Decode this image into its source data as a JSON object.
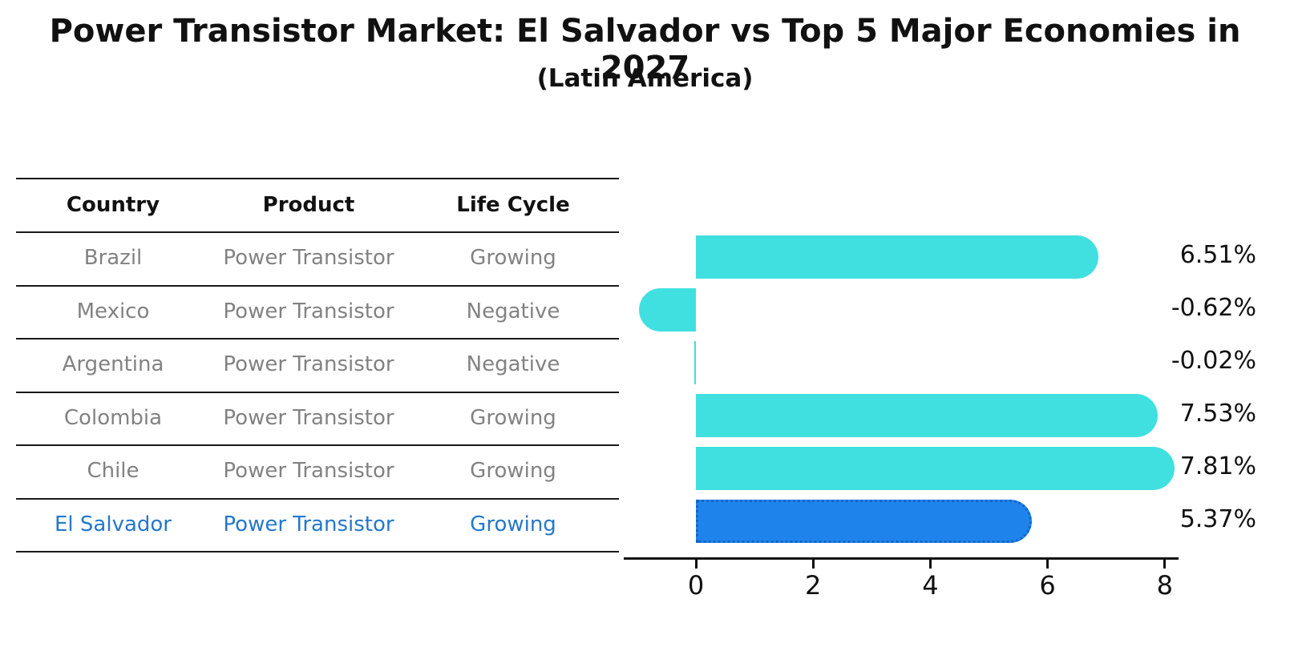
{
  "title": "Power Transistor Market: El Salvador vs Top 5 Major Economies in 2027",
  "subtitle": "(Latin America)",
  "table": {
    "headers": [
      "Country",
      "Product",
      "Life Cycle"
    ],
    "rows": [
      {
        "country": "Brazil",
        "product": "Power Transistor",
        "life_cycle": "Growing",
        "highlight": false
      },
      {
        "country": "Mexico",
        "product": "Power Transistor",
        "life_cycle": "Negative",
        "highlight": false
      },
      {
        "country": "Argentina",
        "product": "Power Transistor",
        "life_cycle": "Negative",
        "highlight": false
      },
      {
        "country": "Colombia",
        "product": "Power Transistor",
        "life_cycle": "Growing",
        "highlight": false
      },
      {
        "country": "Chile",
        "product": "Power Transistor",
        "life_cycle": "Growing",
        "highlight": false
      },
      {
        "country": "El Salvador",
        "product": "Power Transistor",
        "life_cycle": "Growing",
        "highlight": true
      }
    ]
  },
  "chart_data": {
    "type": "bar",
    "orientation": "horizontal",
    "title": "Power Transistor Market: El Salvador vs Top 5 Major Economies in 2027",
    "subtitle": "(Latin America)",
    "categories": [
      "Brazil",
      "Mexico",
      "Argentina",
      "Colombia",
      "Chile",
      "El Salvador"
    ],
    "values": [
      6.51,
      -0.62,
      -0.02,
      7.53,
      7.81,
      5.37
    ],
    "value_labels": [
      "6.51%",
      "-0.62%",
      "-0.02%",
      "7.53%",
      "7.81%",
      "5.37%"
    ],
    "x_ticks": [
      0,
      2,
      4,
      6,
      8
    ],
    "xlim": [
      -1.23,
      8.24
    ],
    "grid": false,
    "legend": false,
    "highlight_category": "El Salvador",
    "colors": {
      "bar": "#40E0E0",
      "highlight_bar_fill": "#1E84EC",
      "highlight_bar_border": "#1565C8",
      "highlight_text": "#2478CC",
      "table_text": "#828282",
      "header_text": "#111111"
    }
  }
}
